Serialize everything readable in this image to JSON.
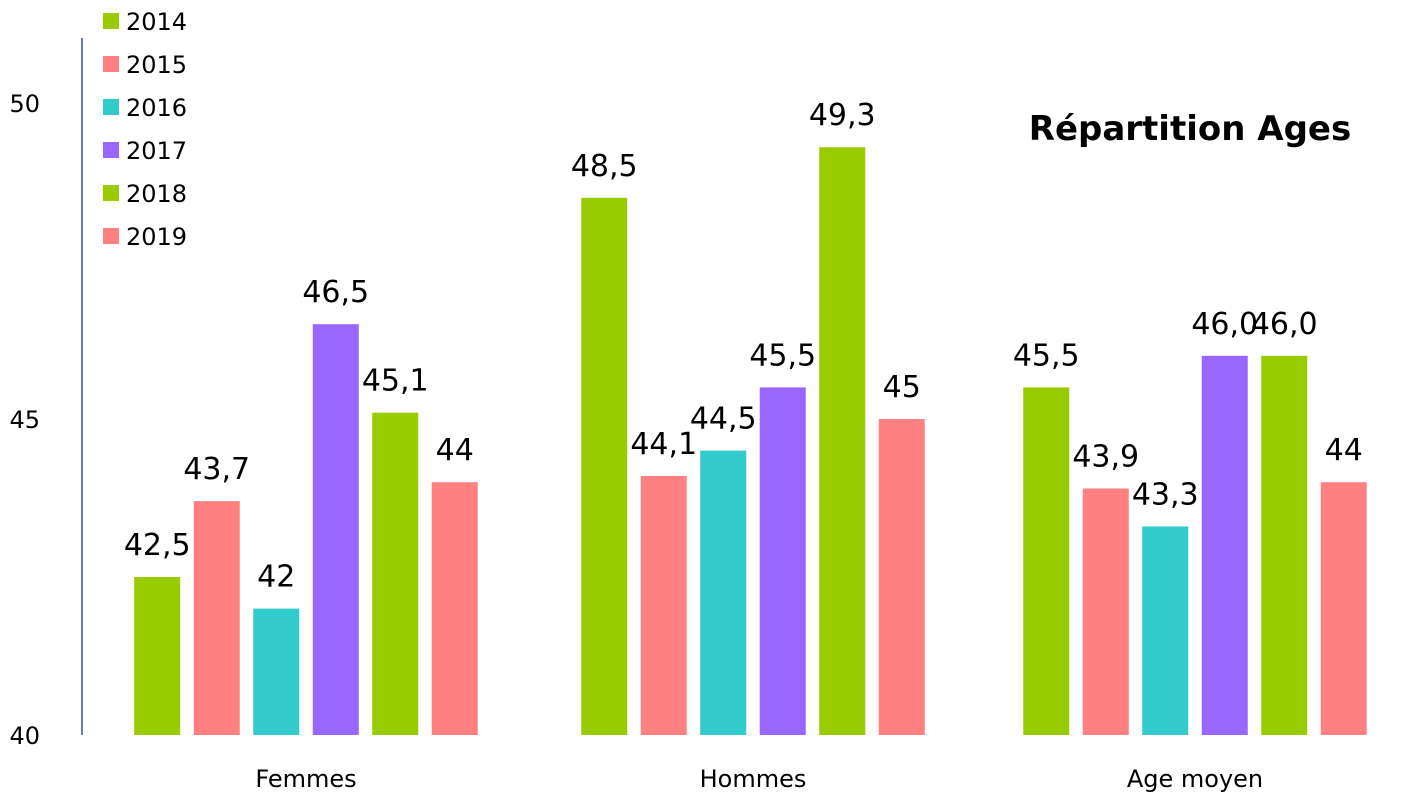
{
  "chart_data": {
    "type": "bar",
    "title": "Répartition Ages",
    "xlabel": "",
    "ylabel": "",
    "ylim": [
      40,
      50
    ],
    "yticks": [
      "40",
      "45",
      "50"
    ],
    "categories": [
      "Femmes",
      "Hommes",
      "Age moyen"
    ],
    "grid": false,
    "legend_position": "top-left",
    "series": [
      {
        "name": "2014",
        "color": "#99cc00",
        "values": [
          42.5,
          48.5,
          45.5
        ],
        "labels": [
          "42,5",
          "48,5",
          "45,5"
        ]
      },
      {
        "name": "2015",
        "color": "#ff8080",
        "values": [
          43.7,
          44.1,
          43.9
        ],
        "labels": [
          "43,7",
          "44,1",
          "43,9"
        ]
      },
      {
        "name": "2016",
        "color": "#33cccc",
        "values": [
          42,
          44.5,
          43.3
        ],
        "labels": [
          "42",
          "44,5",
          "43,3"
        ]
      },
      {
        "name": "2017",
        "color": "#9966ff",
        "values": [
          46.5,
          45.5,
          46.0
        ],
        "labels": [
          "46,5",
          "45,5",
          "46,0"
        ]
      },
      {
        "name": "2018",
        "color": "#99cc00",
        "values": [
          45.1,
          49.3,
          46.0
        ],
        "labels": [
          "45,1",
          "49,3",
          "46,0"
        ]
      },
      {
        "name": "2019",
        "color": "#ff8080",
        "values": [
          44,
          45,
          44
        ],
        "labels": [
          "44",
          "45",
          "44"
        ]
      }
    ]
  }
}
